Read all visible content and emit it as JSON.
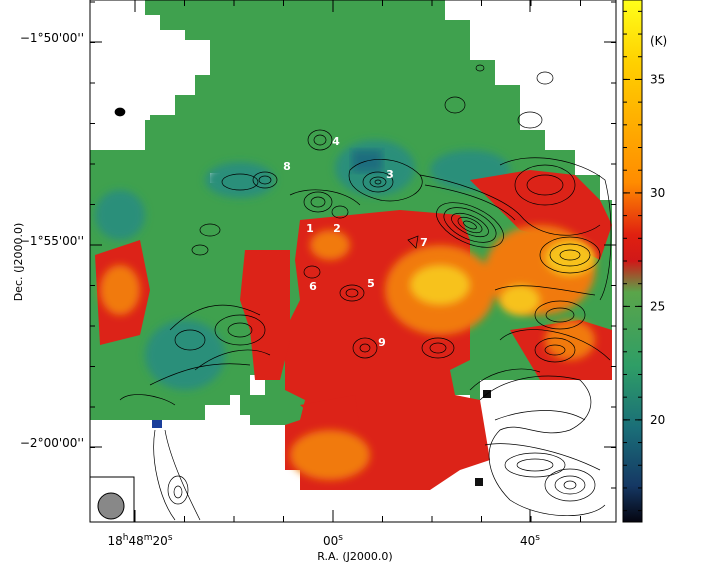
{
  "axes": {
    "xlabel": "R.A. (J2000.0)",
    "ylabel": "Dec. (J2000.0)",
    "x_ticks": [
      {
        "h": "18",
        "m": "48",
        "s": "20",
        "pos": 0
      },
      {
        "s": "00",
        "pos": 1
      },
      {
        "s": "40",
        "pos": 2
      }
    ],
    "y_ticks": [
      {
        "label": "−1°50'00''"
      },
      {
        "label": "−1°55'00''"
      },
      {
        "label": "−2°00'00''"
      }
    ]
  },
  "colorbar": {
    "unit": "(K)",
    "ticks": [
      "35",
      "30",
      "25",
      "20"
    ],
    "range": [
      15.5,
      38.5
    ],
    "gradient": [
      "#ffff1a",
      "#ffd000",
      "#ff8c00",
      "#e02010",
      "#d01818",
      "#5aa54a",
      "#2f9e66",
      "#1a6e78",
      "#153864",
      "#050510"
    ]
  },
  "sources": [
    "1",
    "2",
    "3",
    "4",
    "5",
    "6",
    "7",
    "8",
    "9"
  ],
  "beam": {
    "shape": "circle"
  },
  "map_colors": {
    "green": "#3fa14e",
    "teal": "#2c8f7a",
    "red": "#dc2318",
    "orange": "#f17a10",
    "yellow": "#f7c21a"
  }
}
